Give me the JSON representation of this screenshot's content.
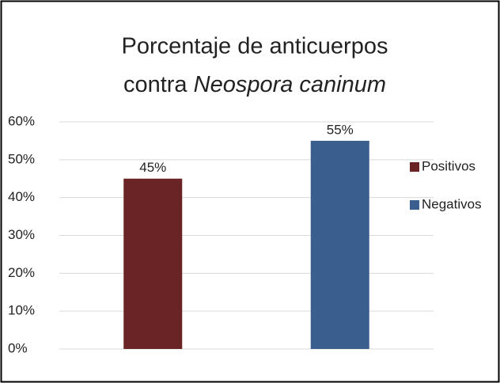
{
  "chart_data": {
    "type": "bar",
    "title": [
      "Porcentaje de anticuerpos",
      "contra ",
      "Neospora caninum"
    ],
    "categories": [
      null,
      null
    ],
    "series": [
      {
        "name": "Positivos",
        "color": "#6b2425",
        "values": [
          45,
          null
        ],
        "value_labels": [
          "45%",
          null
        ]
      },
      {
        "name": "Negativos",
        "color": "#3a5f8f",
        "values": [
          null,
          55
        ],
        "value_labels": [
          null,
          "55%"
        ]
      }
    ],
    "ylim": [
      0,
      60
    ],
    "yticks": [
      {
        "value": 0,
        "label": "0%"
      },
      {
        "value": 10,
        "label": "10%"
      },
      {
        "value": 20,
        "label": "20%"
      },
      {
        "value": 30,
        "label": "30%"
      },
      {
        "value": 40,
        "label": "40%"
      },
      {
        "value": 50,
        "label": "50%"
      },
      {
        "value": 60,
        "label": "60%"
      }
    ],
    "grid": true,
    "legend": "right"
  }
}
